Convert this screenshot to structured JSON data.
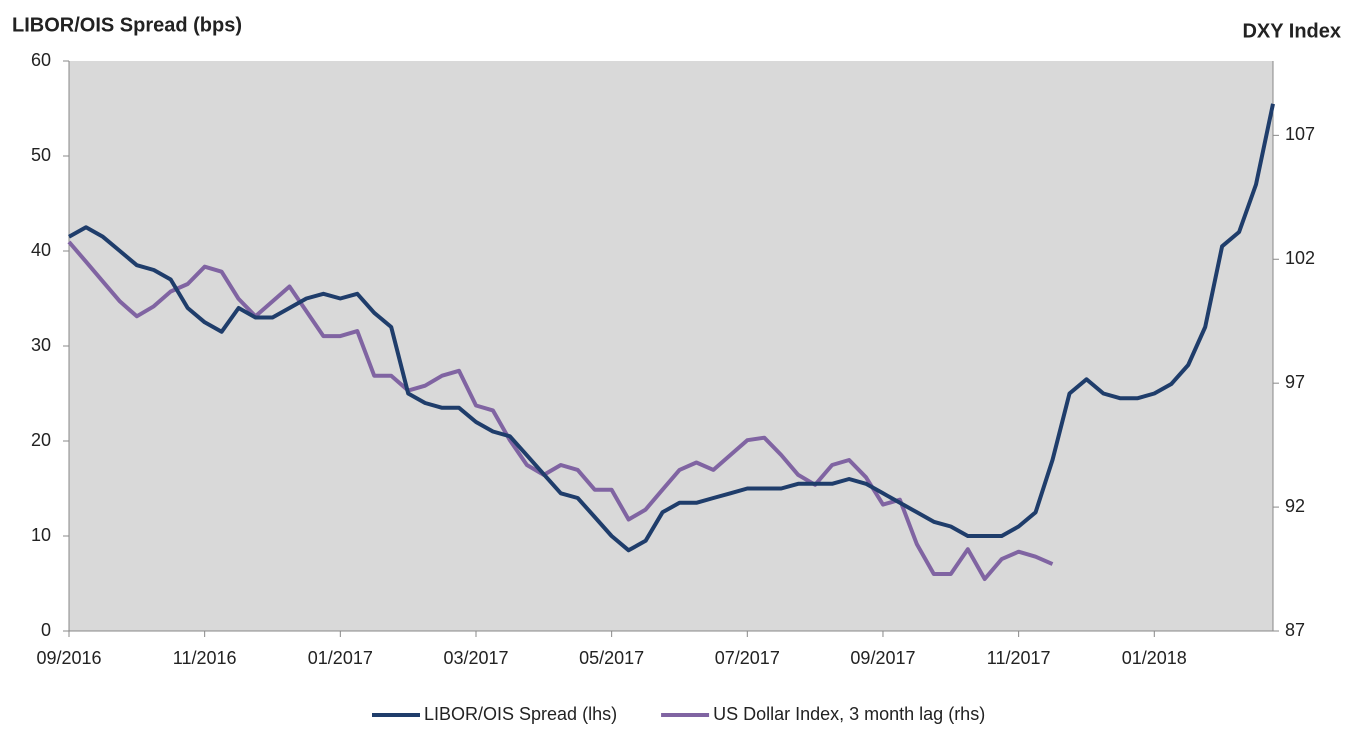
{
  "chart_data": {
    "type": "line",
    "y_label": "LIBOR/OIS Spread (bps)",
    "y2_label": "DXY Index",
    "categories": [
      "09/2016",
      null,
      null,
      null,
      null,
      null,
      null,
      null,
      "11/2016",
      null,
      null,
      null,
      null,
      null,
      null,
      null,
      "01/2017",
      null,
      null,
      null,
      null,
      null,
      null,
      null,
      "03/2017",
      null,
      null,
      null,
      null,
      null,
      null,
      null,
      "05/2017",
      null,
      null,
      null,
      null,
      null,
      null,
      null,
      "07/2017",
      null,
      null,
      null,
      null,
      null,
      null,
      null,
      "09/2017",
      null,
      null,
      null,
      null,
      null,
      null,
      null,
      "11/2017",
      null,
      null,
      null,
      null,
      null,
      null,
      null,
      "01/2018",
      null,
      null,
      null,
      null,
      null,
      null,
      null
    ],
    "series": [
      {
        "name": "LIBOR/OIS Spread (lhs)",
        "color": "#1f3d6b",
        "axis": "y",
        "values": [
          41.5,
          42.5,
          41.5,
          40,
          38.5,
          38,
          37,
          34,
          32.5,
          31.5,
          34,
          33,
          33,
          34,
          35,
          35.5,
          35,
          35.5,
          33.5,
          32,
          25,
          24,
          23.5,
          23.5,
          22,
          21,
          20.5,
          18.5,
          16.5,
          14.5,
          14,
          12,
          10,
          8.5,
          9.5,
          12.5,
          13.5,
          13.5,
          14,
          14.5,
          15,
          15,
          15,
          15.5,
          15.5,
          15.5,
          16,
          15.5,
          14.5,
          13.5,
          12.5,
          11.5,
          11,
          10,
          10,
          10,
          11,
          12.5,
          18,
          25,
          26.5,
          25,
          24.5,
          24.5,
          25,
          26,
          28,
          32,
          40.5,
          42,
          47,
          55.5
        ]
      },
      {
        "name": "US Dollar Index, 3 month lag (rhs)",
        "color": "#8064a2",
        "axis": "y2",
        "values": [
          102.7,
          101.9,
          101.1,
          100.3,
          99.7,
          100.1,
          100.7,
          101,
          101.7,
          101.5,
          100.4,
          99.7,
          100.3,
          100.9,
          99.9,
          98.9,
          98.9,
          99.1,
          97.3,
          97.3,
          96.7,
          96.9,
          97.3,
          97.5,
          96.1,
          95.9,
          94.7,
          93.7,
          93.3,
          93.7,
          93.5,
          92.7,
          92.7,
          91.5,
          91.9,
          92.7,
          93.5,
          93.8,
          93.5,
          94.1,
          94.7,
          94.8,
          94.1,
          93.3,
          92.9,
          93.7,
          93.9,
          93.2,
          92.1,
          92.3,
          90.5,
          89.3,
          89.3,
          90.3,
          89.1,
          89.9,
          90.2,
          90,
          89.7,
          null,
          null,
          null,
          null,
          null,
          null,
          null,
          null,
          null,
          null,
          null,
          null,
          null
        ]
      }
    ],
    "ylim": [
      0,
      60
    ],
    "yticks": [
      0,
      10,
      20,
      30,
      40,
      50,
      60
    ],
    "y2lim": [
      87,
      110
    ],
    "y2ticks": [
      87,
      92,
      97,
      102,
      107
    ],
    "legend": "bottom"
  }
}
